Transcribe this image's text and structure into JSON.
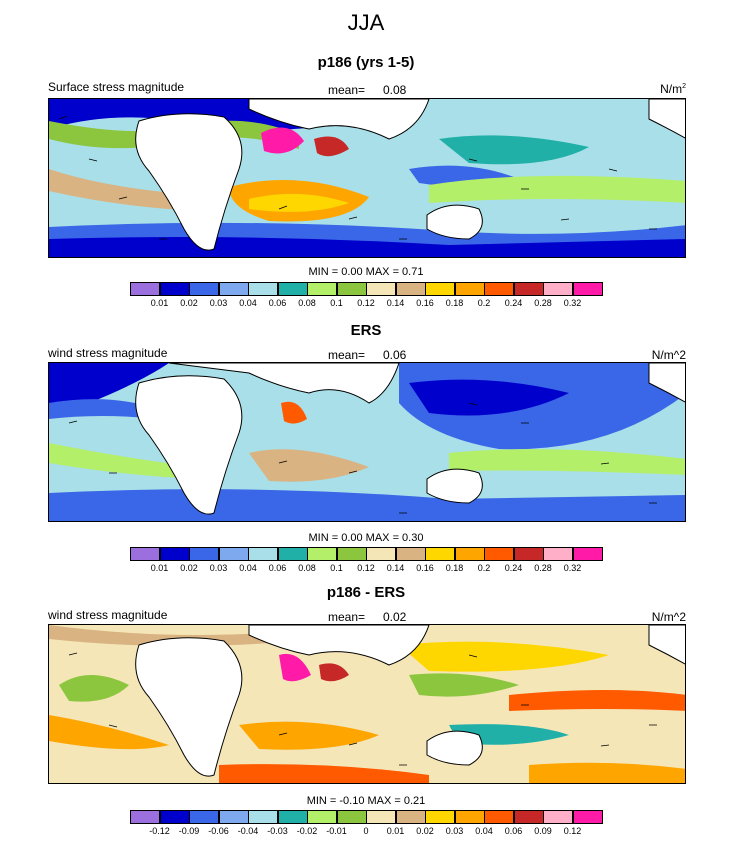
{
  "figure": {
    "title": "JJA"
  },
  "panels": [
    {
      "title": "p186 (yrs 1-5)",
      "left_label": "Surface stress magnitude",
      "mean_label": "mean=",
      "mean_value": "0.08",
      "units": "N/m",
      "units_sup": "2",
      "minmax_text": "MIN =   0.00 MAX =   0.71",
      "palette": [
        "#9b6fde",
        "#0000cd",
        "#3a66e8",
        "#7ea9ef",
        "#a9dfe8",
        "#21b0a8",
        "#b4ef6a",
        "#8cc63f",
        "#f5e6b8",
        "#d9b382",
        "#ffd700",
        "#ffa500",
        "#ff5a00",
        "#c62828",
        "#ffb0c8",
        "#ff1aa8"
      ],
      "ticks": [
        "0.01",
        "0.02",
        "0.03",
        "0.04",
        "0.06",
        "0.08",
        "0.1",
        "0.12",
        "0.14",
        "0.16",
        "0.18",
        "0.2",
        "0.24",
        "0.28",
        "0.32"
      ]
    },
    {
      "title": "ERS",
      "left_label": "wind stress magnitude",
      "mean_label": "mean=",
      "mean_value": "0.06",
      "units": "N/m^2",
      "units_sup": "",
      "minmax_text": "MIN =   0.00 MAX =   0.30",
      "palette": [
        "#9b6fde",
        "#0000cd",
        "#3a66e8",
        "#7ea9ef",
        "#a9dfe8",
        "#21b0a8",
        "#b4ef6a",
        "#8cc63f",
        "#f5e6b8",
        "#d9b382",
        "#ffd700",
        "#ffa500",
        "#ff5a00",
        "#c62828",
        "#ffb0c8",
        "#ff1aa8"
      ],
      "ticks": [
        "0.01",
        "0.02",
        "0.03",
        "0.04",
        "0.06",
        "0.08",
        "0.1",
        "0.12",
        "0.14",
        "0.16",
        "0.18",
        "0.2",
        "0.24",
        "0.28",
        "0.32"
      ]
    },
    {
      "title": "p186 - ERS",
      "left_label": "wind stress magnitude",
      "mean_label": "mean=",
      "mean_value": "0.02",
      "units": "N/m^2",
      "units_sup": "",
      "minmax_text": "MIN =  -0.10 MAX =   0.21",
      "palette": [
        "#9b6fde",
        "#0000cd",
        "#3a66e8",
        "#7ea9ef",
        "#a9dfe8",
        "#21b0a8",
        "#b4ef6a",
        "#8cc63f",
        "#f5e6b8",
        "#d9b382",
        "#ffd700",
        "#ffa500",
        "#ff5a00",
        "#c62828",
        "#ffb0c8",
        "#ff1aa8"
      ],
      "ticks": [
        "-0.12",
        "-0.09",
        "-0.06",
        "-0.04",
        "-0.03",
        "-0.02",
        "-0.01",
        "0",
        "0.01",
        "0.02",
        "0.03",
        "0.04",
        "0.06",
        "0.09",
        "0.12"
      ]
    }
  ],
  "chart_data": [
    {
      "type": "heatmap",
      "title": "p186 (yrs 1-5)",
      "variable": "Surface stress magnitude",
      "units": "N/m^2",
      "mean": 0.08,
      "min": 0.0,
      "max": 0.71,
      "contour_levels": [
        0.01,
        0.02,
        0.03,
        0.04,
        0.06,
        0.08,
        0.1,
        0.12,
        0.14,
        0.16,
        0.18,
        0.2,
        0.24,
        0.28,
        0.32
      ],
      "overlay": "wind stress vectors"
    },
    {
      "type": "heatmap",
      "title": "ERS",
      "variable": "wind stress magnitude",
      "units": "N/m^2",
      "mean": 0.06,
      "min": 0.0,
      "max": 0.3,
      "contour_levels": [
        0.01,
        0.02,
        0.03,
        0.04,
        0.06,
        0.08,
        0.1,
        0.12,
        0.14,
        0.16,
        0.18,
        0.2,
        0.24,
        0.28,
        0.32
      ],
      "overlay": "wind stress vectors"
    },
    {
      "type": "heatmap",
      "title": "p186 - ERS",
      "variable": "wind stress magnitude",
      "units": "N/m^2",
      "mean": 0.02,
      "min": -0.1,
      "max": 0.21,
      "contour_levels": [
        -0.12,
        -0.09,
        -0.06,
        -0.04,
        -0.03,
        -0.02,
        -0.01,
        0,
        0.01,
        0.02,
        0.03,
        0.04,
        0.06,
        0.09,
        0.12
      ],
      "overlay": "wind stress difference vectors"
    }
  ]
}
